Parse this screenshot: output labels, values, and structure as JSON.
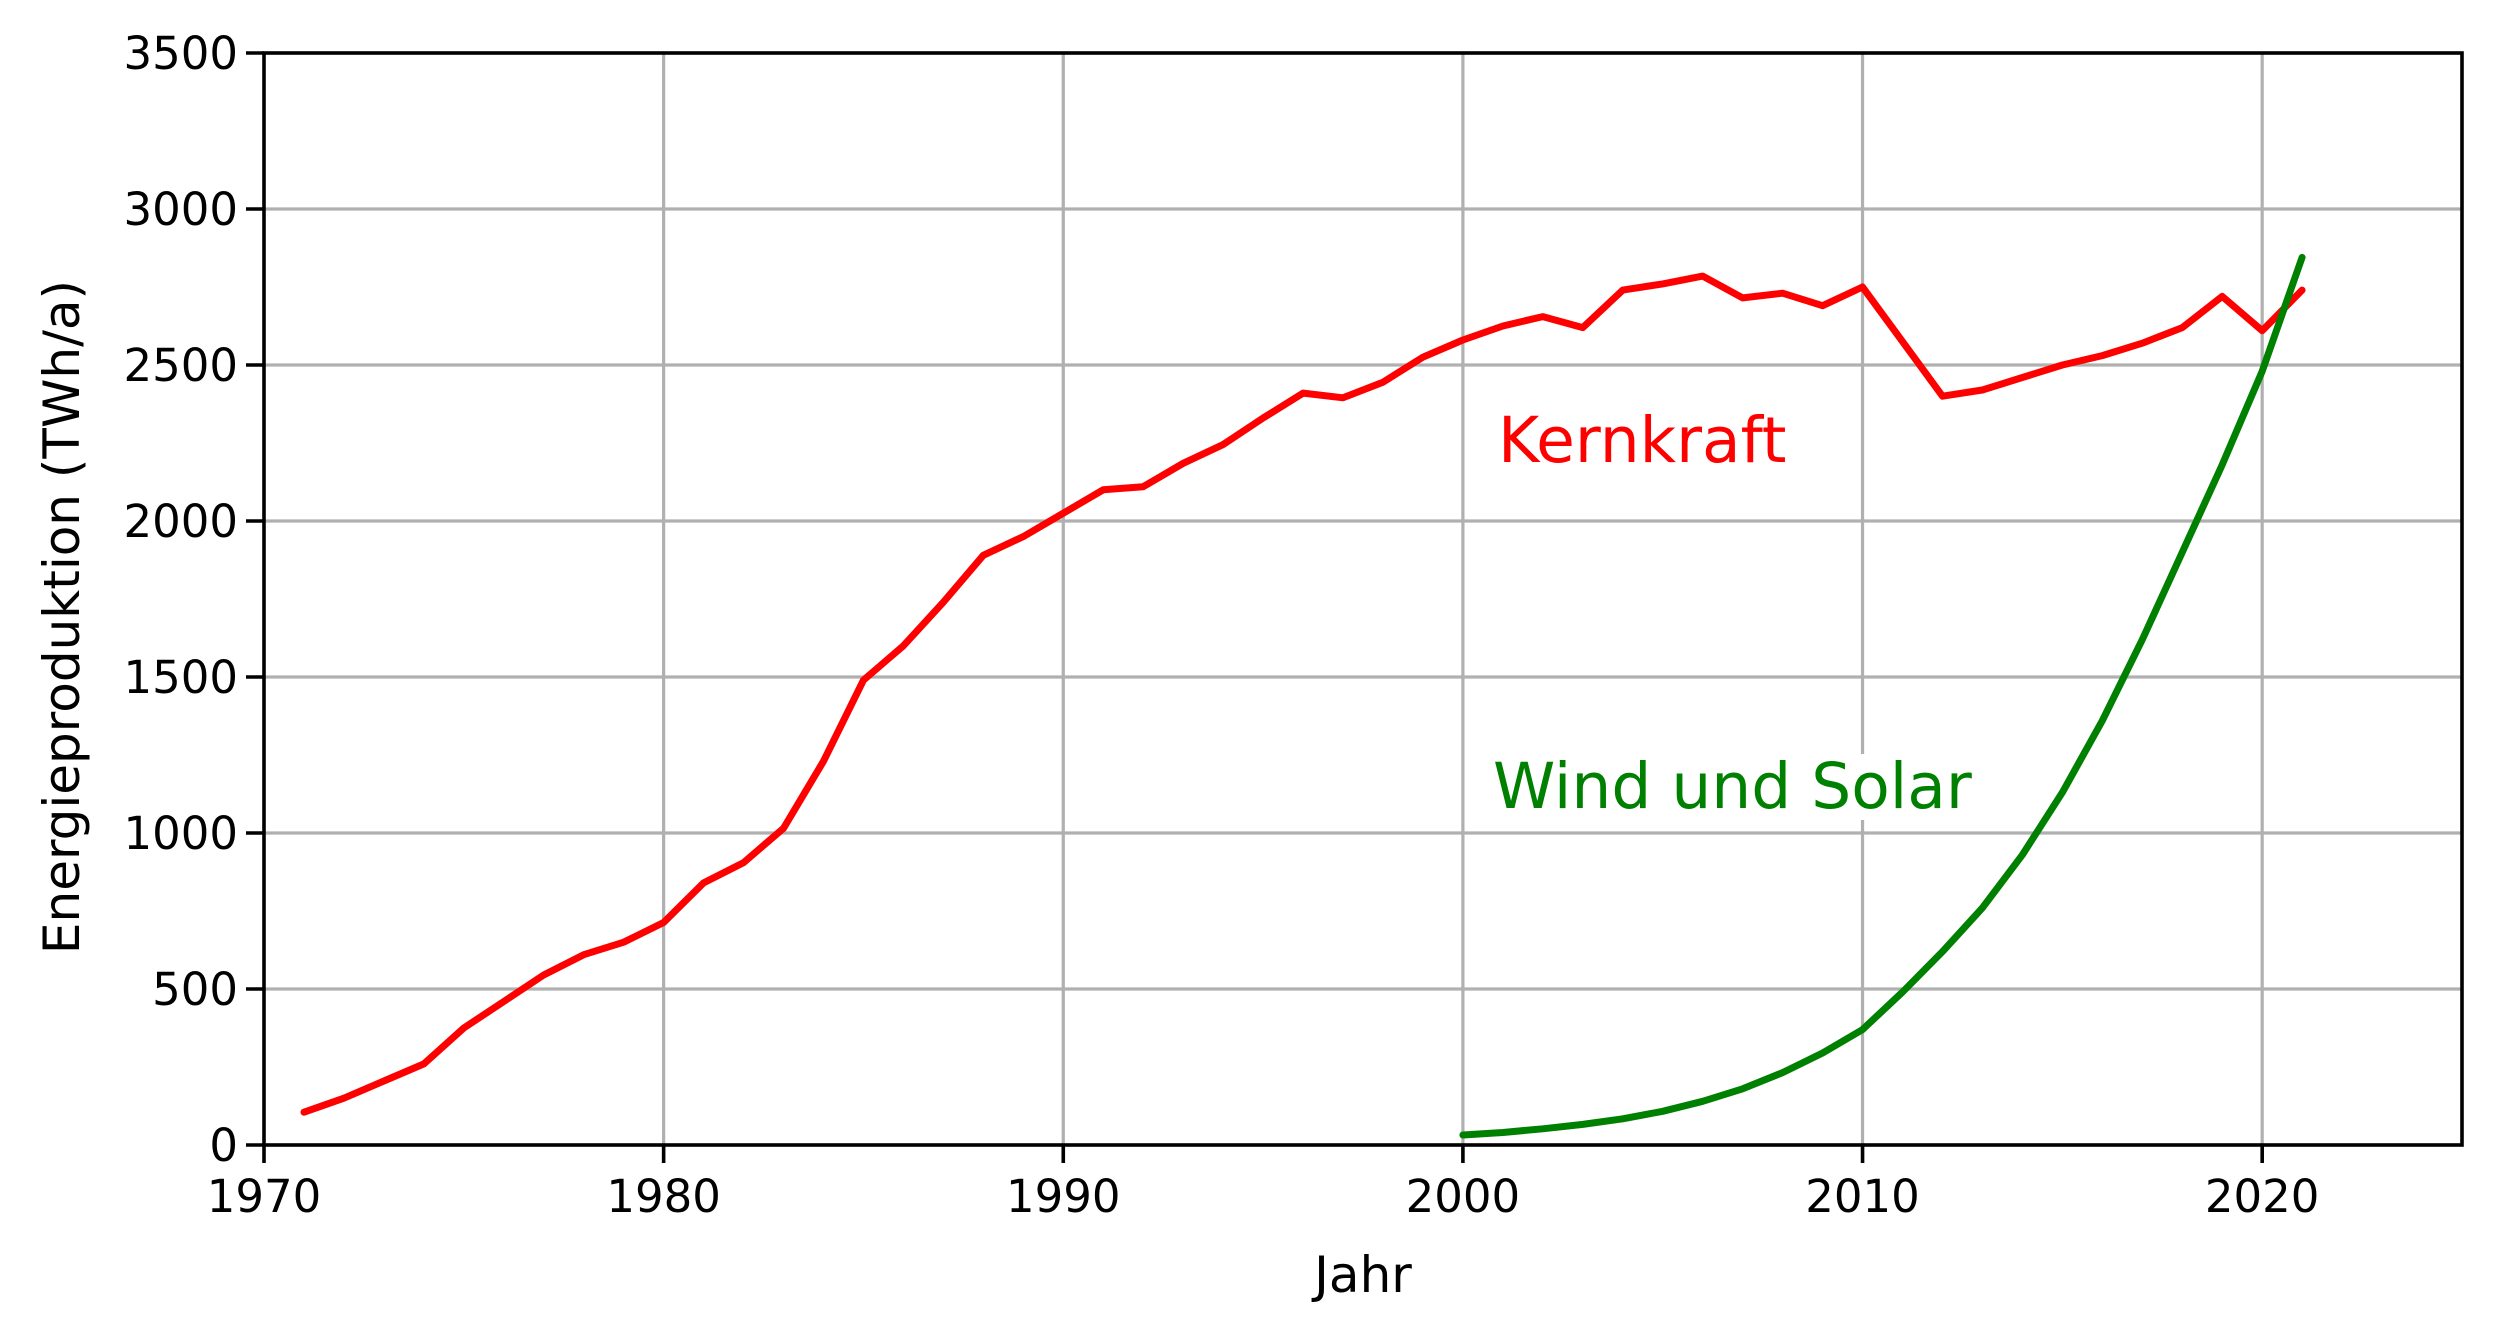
{
  "chart_data": {
    "type": "line",
    "title": "",
    "xlabel": "Jahr",
    "ylabel": "Energieproduktion (TWh/a)",
    "xlim": [
      1970,
      2025
    ],
    "ylim": [
      0,
      3500
    ],
    "x_ticks": [
      1970,
      1980,
      1990,
      2000,
      2010,
      2020
    ],
    "y_ticks": [
      0,
      500,
      1000,
      1500,
      2000,
      2500,
      3000,
      3500
    ],
    "grid": true,
    "grid_color": "#b0b0b0",
    "axis_color": "#000000",
    "background_color": "#ffffff",
    "legend_position": "inline-annotations",
    "series": [
      {
        "name": "Kernkraft",
        "color": "#ff0000",
        "x": [
          1971,
          1972,
          1973,
          1974,
          1975,
          1976,
          1977,
          1978,
          1979,
          1980,
          1981,
          1982,
          1983,
          1984,
          1985,
          1986,
          1987,
          1988,
          1989,
          1990,
          1991,
          1992,
          1993,
          1994,
          1995,
          1996,
          1997,
          1998,
          1999,
          2000,
          2001,
          2002,
          2003,
          2004,
          2005,
          2006,
          2007,
          2008,
          2009,
          2010,
          2011,
          2012,
          2013,
          2014,
          2015,
          2016,
          2017,
          2018,
          2019,
          2020,
          2021
        ],
        "values": [
          105,
          150,
          205,
          260,
          375,
          460,
          545,
          610,
          650,
          713,
          840,
          905,
          1015,
          1230,
          1490,
          1600,
          1740,
          1890,
          1950,
          2025,
          2100,
          2110,
          2185,
          2245,
          2330,
          2410,
          2395,
          2445,
          2525,
          2580,
          2625,
          2655,
          2620,
          2740,
          2760,
          2785,
          2715,
          2730,
          2690,
          2750,
          2575,
          2400,
          2420,
          2460,
          2500,
          2530,
          2570,
          2620,
          2720,
          2610,
          2740
        ]
      },
      {
        "name": "Wind und Solar",
        "color": "#008000",
        "x": [
          2000,
          2001,
          2002,
          2003,
          2004,
          2005,
          2006,
          2007,
          2008,
          2009,
          2010,
          2011,
          2012,
          2013,
          2014,
          2015,
          2016,
          2017,
          2018,
          2019,
          2020,
          2021
        ],
        "values": [
          32,
          40,
          52,
          66,
          84,
          108,
          140,
          180,
          232,
          295,
          370,
          490,
          620,
          760,
          930,
          1130,
          1360,
          1620,
          1900,
          2180,
          2480,
          2845
        ]
      }
    ]
  }
}
